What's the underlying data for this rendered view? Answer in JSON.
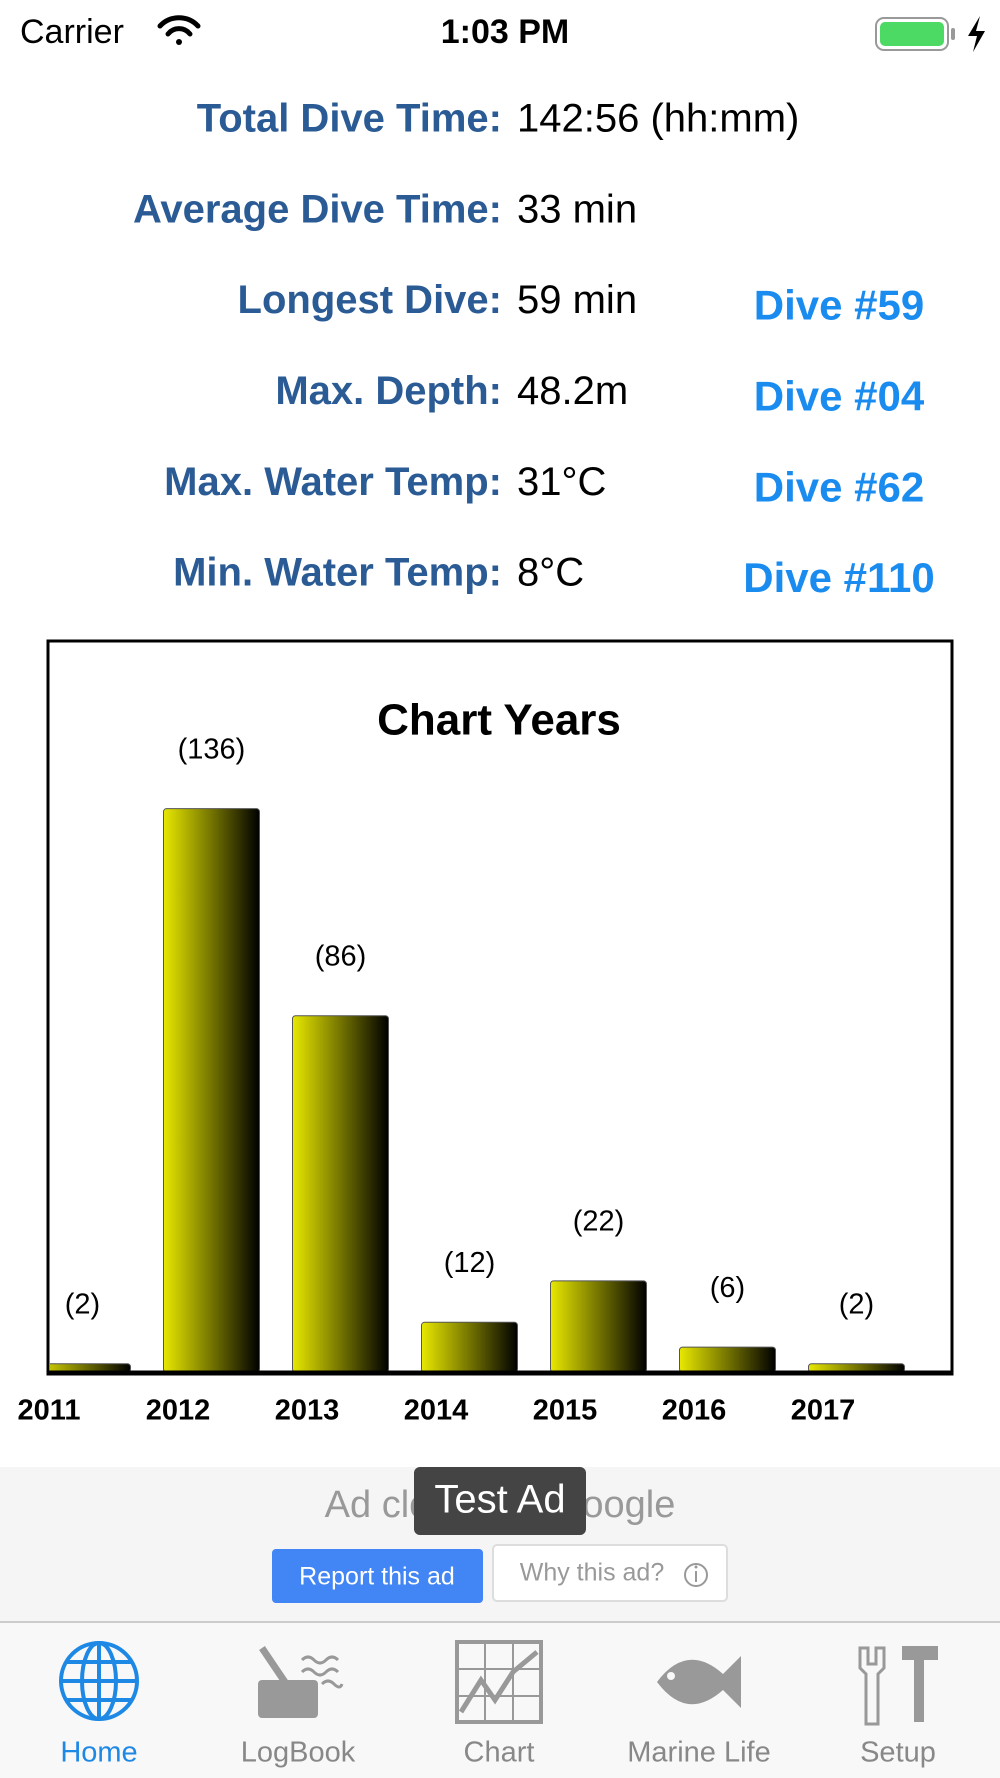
{
  "status_bar": {
    "carrier": "Carrier",
    "time": "1:03 PM"
  },
  "stats": [
    {
      "label": "Total Dive Time:",
      "value": "142:56 (hh:mm)"
    },
    {
      "label": "Average Dive Time:",
      "value": "33 min"
    },
    {
      "label": "Longest Dive:",
      "value": "59 min",
      "link": "Dive #59"
    },
    {
      "label": "Max. Depth:",
      "value": "48.2m",
      "link": "Dive #04"
    },
    {
      "label": "Max. Water Temp:",
      "value": "31°C",
      "link": "Dive #62"
    },
    {
      "label": "Min. Water Temp:",
      "value": "8°C",
      "link": "Dive #110"
    }
  ],
  "chart_data": {
    "type": "bar",
    "title": "Chart Years",
    "categories": [
      "2011",
      "2012",
      "2013",
      "2014",
      "2015",
      "2016",
      "2017"
    ],
    "values": [
      2,
      136,
      86,
      12,
      22,
      6,
      2
    ],
    "value_labels": [
      "(2)",
      "(136)",
      "(86)",
      "(12)",
      "(22)",
      "(6)",
      "(2)"
    ],
    "color": "#e8e800",
    "ylim": [
      0,
      176
    ]
  },
  "ad": {
    "text": "Ad closed by Google",
    "badge": "Test Ad",
    "report": "Report this ad",
    "why": "Why this ad?"
  },
  "tabs": [
    "Home",
    "LogBook",
    "Chart",
    "Marine Life",
    "Setup"
  ]
}
